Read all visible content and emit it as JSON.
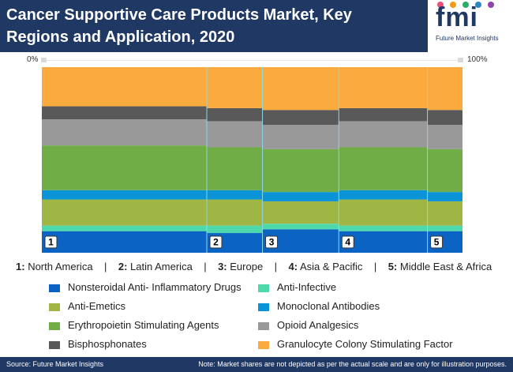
{
  "header": {
    "title": "Cancer Supportive Care Products Market, Key Regions and Application, 2020",
    "logo_text": "fmi",
    "logo_sub": "Future Market Insights"
  },
  "scale": {
    "left_label": "0%",
    "right_label": "100%"
  },
  "regions_line": [
    {
      "num": "1:",
      "name": "North America"
    },
    {
      "num": "2:",
      "name": "Latin America"
    },
    {
      "num": "3:",
      "name": "Europe"
    },
    {
      "num": "4:",
      "name": "Asia & Pacific"
    },
    {
      "num": "5:",
      "name": "Middle East & Africa"
    }
  ],
  "footer": {
    "source": "Source: Future Market Insights",
    "note": "Note: Market shares are not depicted as per the actual scale and are only for illustration purposes."
  },
  "chart_data": {
    "type": "mekko",
    "categories": [
      "1",
      "2",
      "3",
      "4",
      "5"
    ],
    "widths": [
      40,
      13.5,
      18.5,
      21.5,
      8.5
    ],
    "series": [
      {
        "name": "Nonsteroidal Anti- Inflammatory Drugs",
        "color": "#0b63c4",
        "values": [
          12,
          11,
          13,
          12,
          12
        ]
      },
      {
        "name": "Anti-Infective",
        "color": "#4dd9ac",
        "values": [
          3,
          4,
          3,
          3,
          3
        ]
      },
      {
        "name": "Anti-Emetics",
        "color": "#9fb544",
        "values": [
          14,
          14,
          12,
          14,
          13
        ]
      },
      {
        "name": "Monoclonal Antibodies",
        "color": "#0a93d6",
        "values": [
          5,
          5,
          5,
          5,
          5
        ]
      },
      {
        "name": "Erythropoietin Stimulating Agents",
        "color": "#70ad47",
        "values": [
          24,
          23,
          23,
          23,
          23
        ]
      },
      {
        "name": "Opioid Analgesics",
        "color": "#999999",
        "values": [
          14,
          14,
          13,
          14,
          13
        ]
      },
      {
        "name": "Bisphosphonates",
        "color": "#595959",
        "values": [
          7,
          7,
          8,
          7,
          8
        ]
      },
      {
        "name": "Granulocyte Colony Stimulating Factor",
        "color": "#fbab3d",
        "values": [
          21,
          22,
          23,
          22,
          23
        ]
      }
    ],
    "xlim": [
      0,
      100
    ],
    "ylim": [
      0,
      100
    ]
  }
}
